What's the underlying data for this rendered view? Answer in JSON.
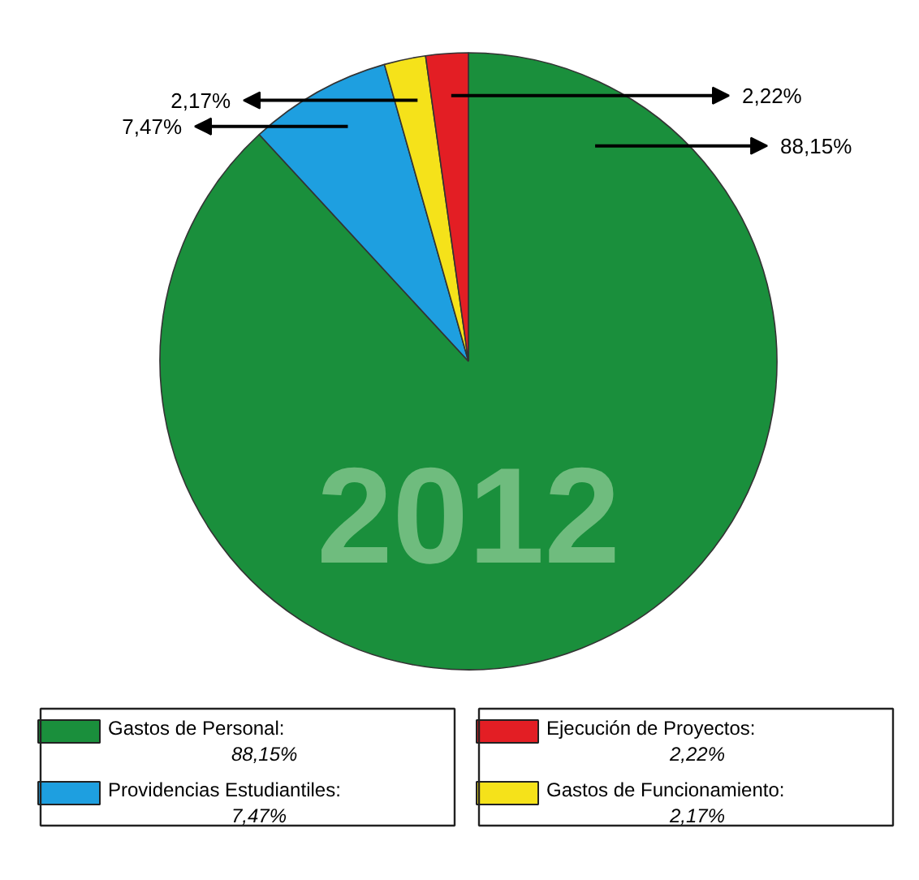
{
  "chart_data": {
    "type": "pie",
    "categories": [
      "Gastos de Personal",
      "Providencias Estudiantiles",
      "Gastos de Funcionamiento",
      "Ejecución de Proyectos"
    ],
    "values": [
      88.15,
      7.47,
      2.17,
      2.22
    ],
    "colors": [
      "#1a8f3c",
      "#1e9fe0",
      "#f5e21a",
      "#e31e24"
    ],
    "value_labels": [
      "88,15%",
      "7,47%",
      "2,17%",
      "2,22%"
    ],
    "annotations": [
      "2012"
    ],
    "legend": "bottom"
  }
}
